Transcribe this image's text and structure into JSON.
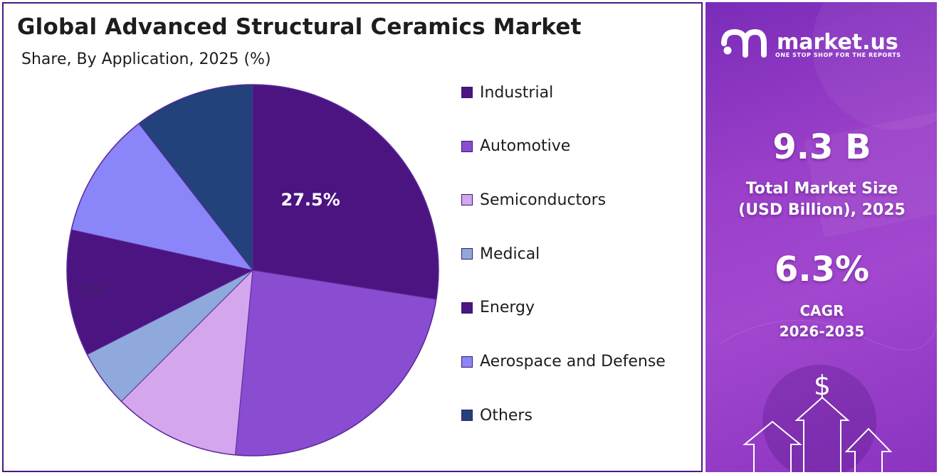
{
  "header": {
    "title": "Global Advanced Structural Ceramics Market",
    "subtitle": "Share, By Application, 2025 (%)"
  },
  "chart_data": {
    "type": "pie",
    "title": "Global Advanced Structural Ceramics Market",
    "subtitle": "Share, By Application, 2025 (%)",
    "categories": [
      "Industrial",
      "Automotive",
      "Semiconductors",
      "Medical",
      "Energy",
      "Aerospace and Defense",
      "Others"
    ],
    "values": [
      27.5,
      24.0,
      11.0,
      5.0,
      11.0,
      11.0,
      10.5
    ],
    "colors": [
      "#4b1480",
      "#8a4cd0",
      "#d3a6ee",
      "#8fa9dc",
      "#4b1480",
      "#8a85f8",
      "#23417a"
    ],
    "data_labels": [
      {
        "category": "Industrial",
        "text": "27.5%"
      },
      {
        "category": "Energy",
        "text": "11%"
      }
    ],
    "legend_position": "right"
  },
  "sidebar": {
    "brand_name": "market.us",
    "brand_tagline": "ONE STOP SHOP FOR THE REPORTS",
    "market_size_value": "9.3 B",
    "market_size_label_line1": "Total Market Size",
    "market_size_label_line2": "(USD Billion), 2025",
    "cagr_value": "6.3%",
    "cagr_label_line1": "CAGR",
    "cagr_label_line2": "2026-2035",
    "dollar_symbol": "$"
  }
}
